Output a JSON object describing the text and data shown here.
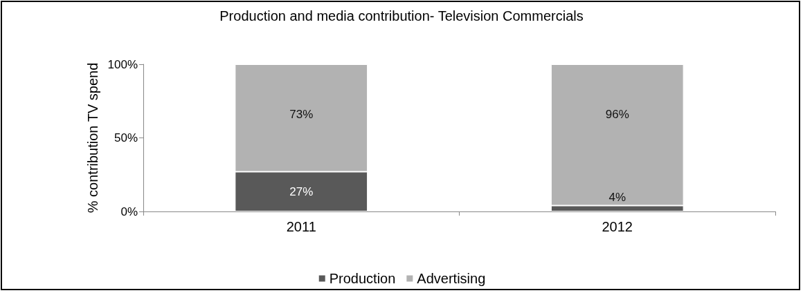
{
  "chart_data": {
    "type": "bar",
    "title": "Production and media contribution- Television Commercials",
    "ylabel": "% contribution TV spend",
    "categories": [
      "2011",
      "2012"
    ],
    "stacked": true,
    "series": [
      {
        "name": "Production",
        "color": "#595959",
        "values": [
          27,
          4
        ],
        "value_labels": [
          "27%",
          "4%"
        ]
      },
      {
        "name": "Advertising",
        "color": "#b2b2b2",
        "values": [
          73,
          96
        ],
        "value_labels": [
          "73%",
          "96%"
        ]
      }
    ],
    "ylim": [
      0,
      100
    ],
    "yticks": [
      {
        "value": 0,
        "label": "0%"
      },
      {
        "value": 50,
        "label": "50%"
      },
      {
        "value": 100,
        "label": "100%"
      }
    ],
    "grid": false,
    "legend": "bottom"
  }
}
